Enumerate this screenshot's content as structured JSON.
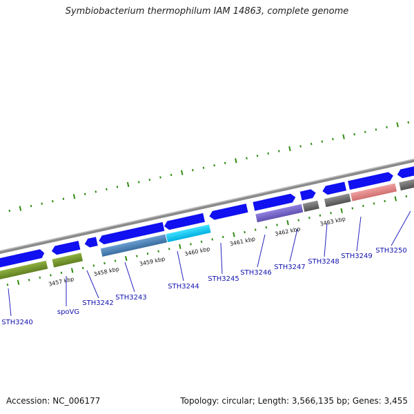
{
  "title": "Symbiobacterium thermophilum IAM 14863, complete genome",
  "footer": {
    "accession": "Accession: NC_006177",
    "summary": "Topology: circular; Length: 3,566,135 bp; Genes: 3,455"
  },
  "colors": {
    "forward_arrow": "#1010f0",
    "backbone": "#8a8a8a",
    "gc_ticks": "#2f8a10",
    "label_text": "#1010b0",
    "leader_line": "#2020c0"
  },
  "kbp_labels": [
    "3457 kbp",
    "3458 kbp",
    "3459 kbp",
    "3460 kbp",
    "3461 kbp",
    "3462 kbp",
    "3463 kbp"
  ],
  "genes": [
    "STH3240",
    "spoVG",
    "STH3242",
    "STH3243",
    "STH3244",
    "STH3245",
    "STH3246",
    "STH3247",
    "STH3248",
    "STH3249",
    "STH3250"
  ]
}
